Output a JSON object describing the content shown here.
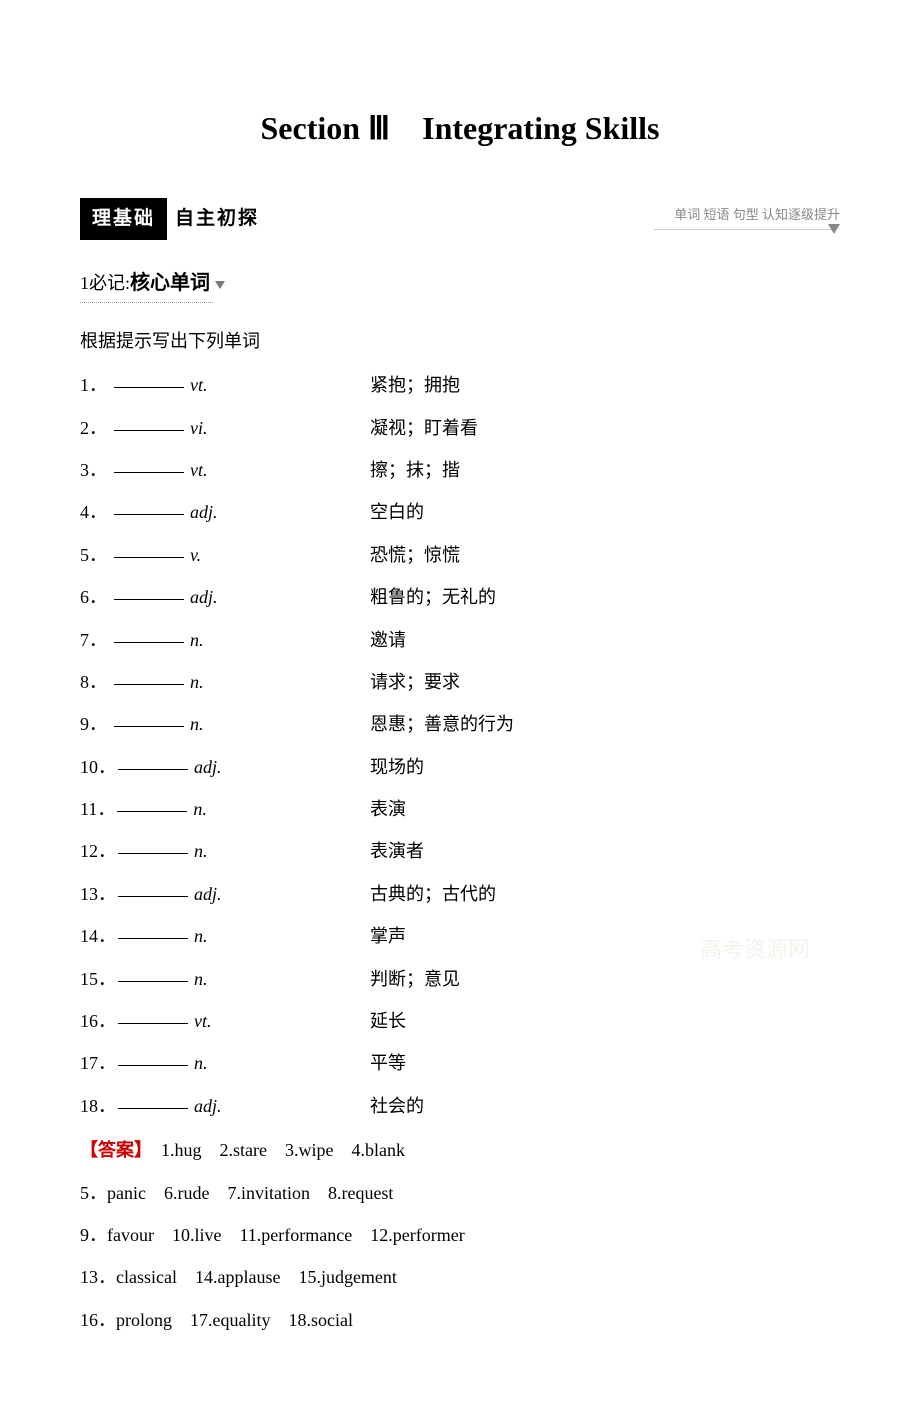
{
  "title": "Section Ⅲ　Integrating Skills",
  "sectionBadge": "理基础",
  "sectionBadgeRight": "自主初探",
  "sectionSubtitle": "单词 短语 句型  认知逐级提升",
  "subHeader": {
    "num": "1",
    "label": "必记:",
    "bold": "核心单词"
  },
  "instruction": "根据提示写出下列单词",
  "vocab": [
    {
      "num": "1．",
      "pos": "vt.",
      "meaning": "紧抱；拥抱"
    },
    {
      "num": "2．",
      "pos": "vi.",
      "meaning": "凝视；盯着看"
    },
    {
      "num": "3．",
      "pos": " vt.",
      "meaning": "擦；抹；揩"
    },
    {
      "num": "4．",
      "pos": " adj.",
      "meaning": "空白的"
    },
    {
      "num": "5．",
      "pos": "v.",
      "meaning": "恐慌；惊慌"
    },
    {
      "num": "6．",
      "pos": "adj.",
      "meaning": "粗鲁的；无礼的"
    },
    {
      "num": "7．",
      "pos": "n.",
      "meaning": "邀请"
    },
    {
      "num": "8．",
      "pos": "n.",
      "meaning": "请求；要求"
    },
    {
      "num": "9．",
      "pos": "n.",
      "meaning": "恩惠；善意的行为"
    },
    {
      "num": "10．",
      "pos": "adj.",
      "meaning": "现场的"
    },
    {
      "num": "11．",
      "pos": "n.",
      "meaning": "表演"
    },
    {
      "num": "12．",
      "pos": "n.",
      "meaning": "表演者"
    },
    {
      "num": "13．",
      "pos": "adj.",
      "meaning": "古典的；古代的"
    },
    {
      "num": "14．",
      "pos": "n.",
      "meaning": "掌声"
    },
    {
      "num": "15．",
      "pos": "n.",
      "meaning": "判断；意见"
    },
    {
      "num": "16．",
      "pos": "vt.",
      "meaning": "延长"
    },
    {
      "num": "17．",
      "pos": " n.",
      "meaning": "平等"
    },
    {
      "num": "18．",
      "pos": "adj.",
      "meaning": "社会的"
    }
  ],
  "answerLabel": "【答案】",
  "answerLines": [
    "　1.hug　2.stare　3.wipe　4.blank",
    "5．panic　6.rude　7.invitation　8.request",
    "9．favour　10.live　11.performance　12.performer",
    "13．classical　14.applause　15.judgement",
    "16．prolong　17.equality　18.social"
  ],
  "watermark": "高考资源网"
}
